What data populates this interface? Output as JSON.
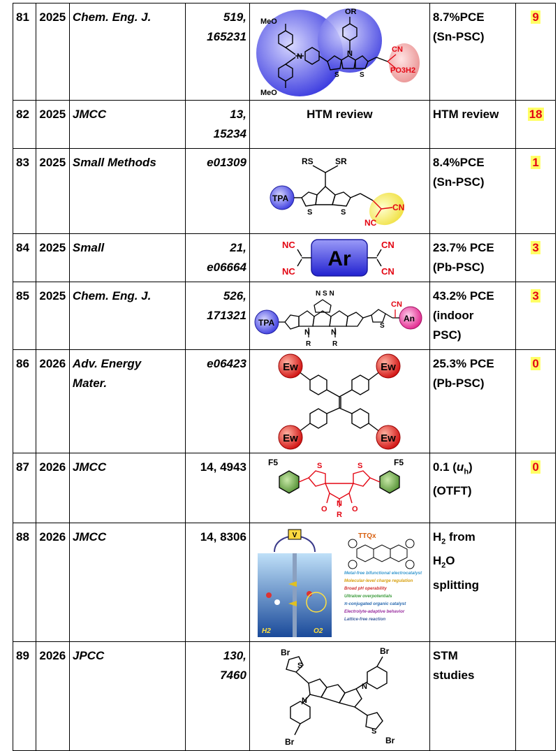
{
  "rows": [
    {
      "num": "81",
      "year": "2025",
      "journal": "Chem. Eng. J.",
      "volume": "519,\n165231",
      "result": "8.7%PCE\n(Sn-PSC)",
      "citations": "9",
      "figure_labels": {
        "meo_top": "MeO",
        "meo_bottom": "MeO",
        "or": "OR",
        "n": "N",
        "s1": "S",
        "s2": "S",
        "cn": "CN",
        "po3h2": "PO3H2"
      }
    },
    {
      "num": "82",
      "year": "2025",
      "journal": "JMCC",
      "volume": "13,\n15234",
      "figure_text": "HTM review",
      "result": "HTM review",
      "citations": "18"
    },
    {
      "num": "83",
      "year": "2025",
      "journal": "Small Methods",
      "volume": "e01309",
      "result": "8.4%PCE\n(Sn-PSC)",
      "citations": "1",
      "figure_labels": {
        "rs": "RS",
        "sr": "SR",
        "tpa": "TPA",
        "s1": "S",
        "s2": "S",
        "nc": "NC",
        "cn": "CN"
      }
    },
    {
      "num": "84",
      "year": "2025",
      "journal": "Small",
      "volume": "21,\ne06664",
      "result": "23.7% PCE\n(Pb-PSC)",
      "citations": "3",
      "figure_labels": {
        "ar": "Ar",
        "nc1": "NC",
        "nc2": "NC",
        "cn1": "CN",
        "cn2": "CN"
      }
    },
    {
      "num": "85",
      "year": "2025",
      "journal": "Chem. Eng. J.",
      "volume": "526,\n171321",
      "result": "43.2% PCE\n(indoor\nPSC)",
      "citations": "3",
      "figure_labels": {
        "tpa": "TPA",
        "an": "An",
        "cn": "CN",
        "n1": "N",
        "n2": "N",
        "r1": "R",
        "r2": "R",
        "s": "S",
        "nsn": "N S N"
      }
    },
    {
      "num": "86",
      "year": "2026",
      "journal": "Adv. Energy\nMater.",
      "volume": "e06423",
      "result": "25.3% PCE\n(Pb-PSC)",
      "citations": "0",
      "figure_labels": {
        "ew": "Ew"
      }
    },
    {
      "num": "87",
      "year": "2026",
      "journal": "JMCC",
      "volume": "14, 4943",
      "result": "0.1 (uh)\n(OTFT)",
      "citations": "0",
      "figure_labels": {
        "f5a": "F5",
        "f5b": "F5",
        "s1": "S",
        "s2": "S",
        "n": "N",
        "r": "R",
        "o1": "O",
        "o2": "O"
      }
    },
    {
      "num": "88",
      "year": "2026",
      "journal": "JMCC",
      "volume": "14, 8306",
      "result": "H2 from\nH2O\nsplitting",
      "citations": "",
      "figure_labels": {
        "ttqx": "TTQx",
        "v": "V",
        "h2": "H2",
        "o2": "O2",
        "list": [
          "Metal-free bifunctional electrocatalyst",
          "Molecular-level charge regulation",
          "Broad pH operability",
          "Ultralow overpotentials",
          "π-conjugated organic catalyst",
          "Electrolyte-adaptive behavior",
          "Lattice-free reaction"
        ]
      }
    },
    {
      "num": "89",
      "year": "2026",
      "journal": "JPCC",
      "volume": "130,\n7460",
      "result": "STM\nstudies",
      "citations": "",
      "figure_labels": {
        "br": "Br",
        "s": "S",
        "n": "N"
      }
    }
  ],
  "colors": {
    "citation_bg": "#ffff66",
    "citation_fg": "#e30613",
    "blue": "#3a3adf",
    "red": "#e30613",
    "green": "#4a8a2a"
  }
}
